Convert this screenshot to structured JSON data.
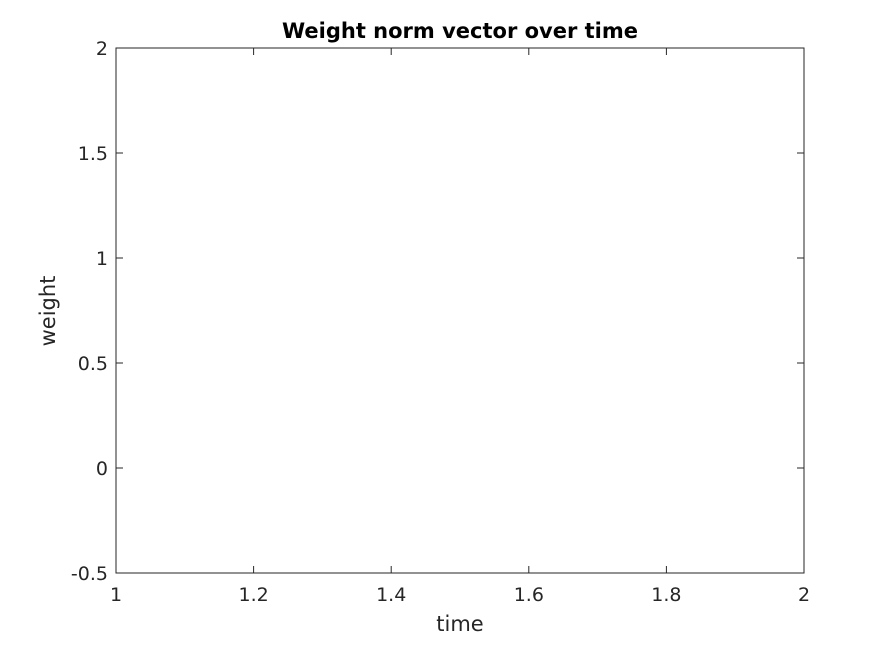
{
  "chart_data": {
    "type": "line",
    "title": "Weight norm vector over time",
    "xlabel": "time",
    "ylabel": "weight",
    "xlim": [
      1,
      2
    ],
    "ylim": [
      -0.5,
      2
    ],
    "x_ticks": [
      "1",
      "1.2",
      "1.4",
      "1.6",
      "1.8",
      "2"
    ],
    "y_ticks": [
      "-0.5",
      "0",
      "0.5",
      "1",
      "1.5",
      "2"
    ],
    "series": [],
    "grid": false,
    "axis_color": "#262626",
    "background": "#ffffff"
  }
}
